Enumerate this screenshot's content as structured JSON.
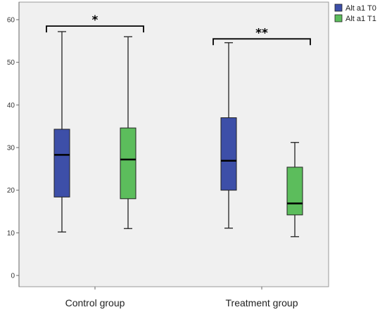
{
  "chart_data": {
    "type": "boxplot",
    "categories": [
      "Control group",
      "Treatment group"
    ],
    "series": [
      {
        "name": "Alt a1 T0",
        "color": "#3d4fa8",
        "boxes": [
          {
            "min": 10.2,
            "q1": 18.4,
            "median": 28.3,
            "q3": 34.3,
            "max": 57.2
          },
          {
            "min": 11.1,
            "q1": 20.0,
            "median": 26.9,
            "q3": 37.0,
            "max": 54.6
          }
        ]
      },
      {
        "name": "Alt a1 T1",
        "color": "#5cbd5c",
        "boxes": [
          {
            "min": 11.0,
            "q1": 18.0,
            "median": 27.2,
            "q3": 34.6,
            "max": 56.0
          },
          {
            "min": 9.1,
            "q1": 14.2,
            "median": 16.9,
            "q3": 25.4,
            "max": 31.2
          }
        ]
      }
    ],
    "ylim": [
      -3,
      63
    ],
    "yticks": [
      0,
      10,
      20,
      30,
      40,
      50,
      60
    ],
    "significance": [
      {
        "group": "Control group",
        "label": "*",
        "y": 58.5
      },
      {
        "group": "Treatment group",
        "label": "**",
        "y": 55.5
      }
    ],
    "legend_position": "top-right",
    "background_color": "#f0f0f0"
  }
}
